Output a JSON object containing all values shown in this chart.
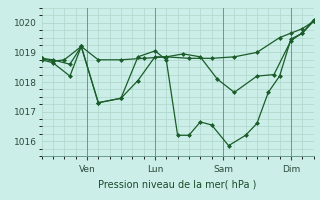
{
  "background_color": "#cceee8",
  "grid_color": "#b0d8cc",
  "line_color": "#1a5c2a",
  "ylim": [
    1015.5,
    1020.5
  ],
  "xlim": [
    0,
    96
  ],
  "yticks": [
    1016,
    1017,
    1018,
    1019,
    1020
  ],
  "xtick_positions": [
    16,
    40,
    64,
    88
  ],
  "xtick_labels": [
    "Ven",
    "Lun",
    "Sam",
    "Dim"
  ],
  "xlabel": "Pression niveau de la mer( hPa )",
  "vline_positions": [
    16,
    40,
    64,
    88
  ],
  "line1_x": [
    0,
    4,
    8,
    14,
    20,
    28,
    36,
    44,
    52,
    60,
    68,
    76,
    84,
    88,
    92,
    96
  ],
  "line1_y": [
    1018.8,
    1018.7,
    1018.75,
    1019.2,
    1018.75,
    1018.75,
    1018.8,
    1018.85,
    1018.8,
    1018.8,
    1018.85,
    1019.0,
    1019.5,
    1019.65,
    1019.8,
    1020.05
  ],
  "line2_x": [
    0,
    4,
    10,
    14,
    20,
    28,
    34,
    40,
    44,
    50,
    56,
    62,
    68,
    76,
    82,
    88,
    92,
    96
  ],
  "line2_y": [
    1018.8,
    1018.75,
    1018.6,
    1019.2,
    1017.3,
    1017.45,
    1018.05,
    1018.85,
    1018.85,
    1018.95,
    1018.85,
    1018.1,
    1017.65,
    1018.2,
    1018.25,
    1019.4,
    1019.65,
    1020.05
  ],
  "line3_x": [
    0,
    4,
    10,
    14,
    20,
    28,
    34,
    40,
    44,
    48,
    52,
    56,
    60,
    66,
    72,
    76,
    80,
    84,
    88,
    92,
    96
  ],
  "line3_y": [
    1018.75,
    1018.65,
    1018.2,
    1019.2,
    1017.3,
    1017.45,
    1018.85,
    1019.05,
    1018.75,
    1016.2,
    1016.2,
    1016.65,
    1016.55,
    1015.85,
    1016.2,
    1016.6,
    1017.65,
    1018.2,
    1019.45,
    1019.65,
    1020.1
  ]
}
